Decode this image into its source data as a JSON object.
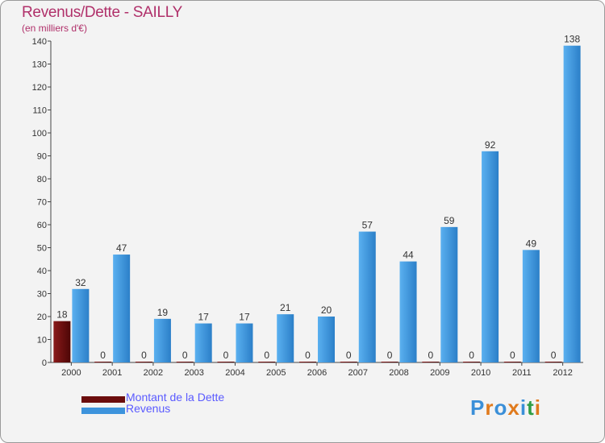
{
  "title": "Revenus/Dette - SAILLY",
  "subtitle": "(en milliers d'€)",
  "legend": [
    {
      "label": "Montant de la Dette",
      "color": "#6b0c0c"
    },
    {
      "label": "Revenus",
      "color": "#3d93dc"
    }
  ],
  "logo": {
    "text": "Proxiti"
  },
  "chart_data": {
    "type": "bar",
    "title": "Revenus/Dette - SAILLY",
    "ylabel": "(en milliers d'€)",
    "xlabel": "",
    "categories": [
      "2000",
      "2001",
      "2002",
      "2003",
      "2004",
      "2005",
      "2006",
      "2007",
      "2008",
      "2009",
      "2010",
      "2011",
      "2012"
    ],
    "ylim": [
      0,
      140
    ],
    "yticks": [
      0,
      10,
      20,
      30,
      40,
      50,
      60,
      70,
      80,
      90,
      100,
      110,
      120,
      130,
      140
    ],
    "grid": false,
    "legend_position": "bottom-left",
    "series": [
      {
        "name": "Montant de la Dette",
        "color": "#6b0c0c",
        "values": [
          18,
          0,
          0,
          0,
          0,
          0,
          0,
          0,
          0,
          0,
          0,
          0,
          0
        ]
      },
      {
        "name": "Revenus",
        "color": "#3d93dc",
        "values": [
          32,
          47,
          19,
          17,
          17,
          21,
          20,
          57,
          44,
          59,
          92,
          49,
          138
        ]
      }
    ]
  }
}
